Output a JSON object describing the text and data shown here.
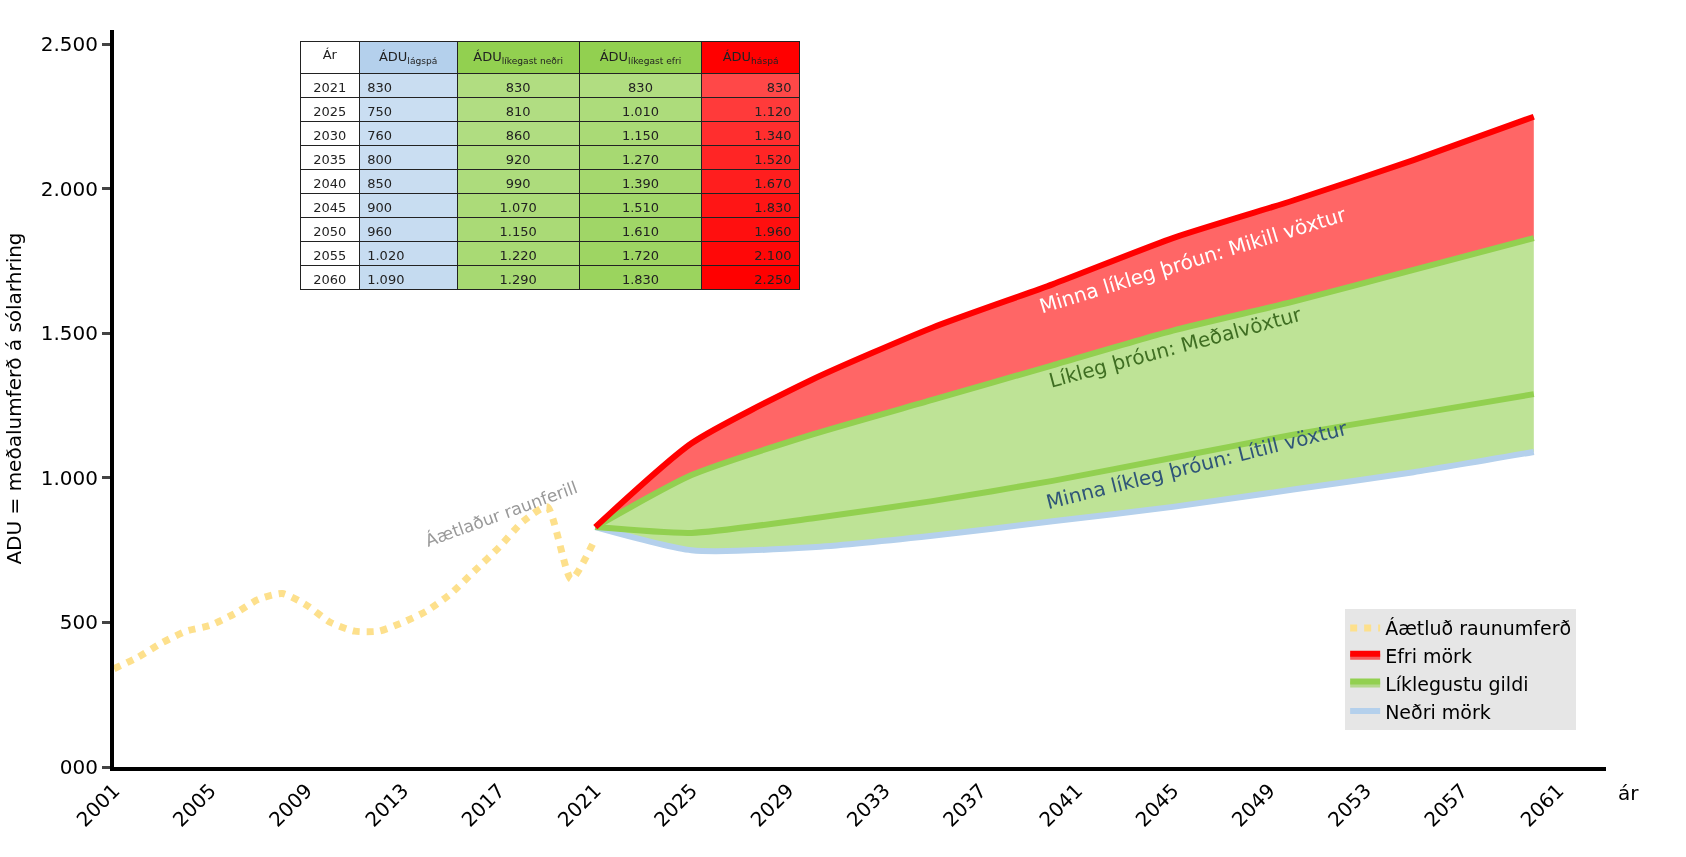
{
  "chart_data": [
    {
      "type": "line",
      "xlabel": "ár",
      "ylabel": "ADU = meðalumferð á sólarhring",
      "xlim": [
        2001,
        2063
      ],
      "xticks": [
        2001,
        2005,
        2009,
        2013,
        2017,
        2021,
        2025,
        2029,
        2033,
        2037,
        2041,
        2045,
        2049,
        2053,
        2057,
        2061
      ],
      "ylim": [
        0,
        2550
      ],
      "yticks": [
        {
          "value": 0,
          "label": "000"
        },
        {
          "value": 500,
          "label": "500"
        },
        {
          "value": 1000,
          "label": "1.000"
        },
        {
          "value": 1500,
          "label": "1.500"
        },
        {
          "value": 2000,
          "label": "2.000"
        },
        {
          "value": 2500,
          "label": "2.500"
        }
      ],
      "legend": "bottom right",
      "marker": "none",
      "series": [
        {
          "name": "Neðri mörk",
          "color": "#b4d0ec",
          "line_style": "solid",
          "x": [
            2021,
            2025,
            2030,
            2035,
            2040,
            2045,
            2050,
            2055,
            2060
          ],
          "values": [
            830,
            750,
            760,
            800,
            850,
            900,
            960,
            1020,
            1090
          ]
        },
        {
          "type": "area",
          "color": "#92d050",
          "line_style": "solid",
          "x": [
            2021,
            2025,
            2030,
            2035,
            2040,
            2045,
            2050,
            2055,
            2060
          ],
          "values": [
            830,
            810,
            860,
            920,
            990,
            1070,
            1150,
            1220,
            1290
          ]
        },
        {
          "type": "area",
          "name": "Líklegustu gildi",
          "color": "#92d050",
          "line_style": "solid",
          "x": [
            2021,
            2025,
            2030,
            2035,
            2040,
            2045,
            2050,
            2055,
            2060
          ],
          "values": [
            830,
            1010,
            1150,
            1270,
            1390,
            1510,
            1610,
            1720,
            1830
          ]
        },
        {
          "type": "area",
          "name": "Efri mörk",
          "color": "#ff0000",
          "line_style": "solid",
          "x": [
            2021,
            2025,
            2030,
            2035,
            2040,
            2045,
            2050,
            2055,
            2060
          ],
          "values": [
            830,
            1120,
            1340,
            1520,
            1670,
            1830,
            1960,
            2100,
            2250
          ]
        },
        {
          "name": "Áætluð raunumferð",
          "color": "#fde08c",
          "line_style": "dotted",
          "x": [
            2001,
            2002,
            2003,
            2004,
            2005,
            2006,
            2007,
            2008,
            2009,
            2010,
            2011,
            2012,
            2013,
            2014,
            2015,
            2016,
            2017,
            2018,
            2019,
            2020,
            2021
          ],
          "values": [
            340,
            380,
            430,
            470,
            490,
            530,
            580,
            600,
            560,
            500,
            470,
            470,
            500,
            540,
            600,
            680,
            760,
            850,
            900,
            650,
            790
          ]
        }
      ],
      "annotations": [
        "Áætlaður raunferill",
        "Minna líkleg þróun: Mikill vöxtur",
        "Líkleg þróun: Meðalvöxtur",
        "Minna líkleg þróun: Lítill vöxtur"
      ]
    },
    {
      "type": "heatmap",
      "ylabel": "Ár",
      "categories": [
        "ÁDU$_{lágspá}$",
        "ÁDU$_{líkegast neðri}$",
        "ÁDU$_{líkegast efri}$",
        "ÁDU$_{háspá}$"
      ],
      "colors": [
        "#b4d0ec",
        "#92d050",
        "#92d050",
        "#ff0000"
      ],
      "y_categories": [
        "2021",
        "2025",
        "2030",
        "2035",
        "2040",
        "2045",
        "2050",
        "2055",
        "2060"
      ],
      "cells": [
        [
          830,
          830,
          830,
          830
        ],
        [
          750,
          810,
          1010,
          1120
        ],
        [
          760,
          860,
          1150,
          1340
        ],
        [
          800,
          920,
          1270,
          1520
        ],
        [
          850,
          990,
          1390,
          1670
        ],
        [
          900,
          1070,
          1510,
          1830
        ],
        [
          960,
          1150,
          1610,
          1960
        ],
        [
          1020,
          1220,
          1720,
          2100
        ],
        [
          1090,
          1290,
          1830,
          2250
        ]
      ],
      "cell_labels": [
        [
          "830",
          "830",
          "830",
          "830"
        ],
        [
          "750",
          "810",
          "1.010",
          "1.120"
        ],
        [
          "760",
          "860",
          "1.150",
          "1.340"
        ],
        [
          "800",
          "920",
          "1.270",
          "1.520"
        ],
        [
          "850",
          "990",
          "1.390",
          "1.670"
        ],
        [
          "900",
          "1.070",
          "1.510",
          "1.830"
        ],
        [
          "960",
          "1.150",
          "1.610",
          "1.960"
        ],
        [
          "1.020",
          "1.220",
          "1.720",
          "2.100"
        ],
        [
          "1.090",
          "1.290",
          "1.830",
          "2.250"
        ]
      ]
    }
  ]
}
